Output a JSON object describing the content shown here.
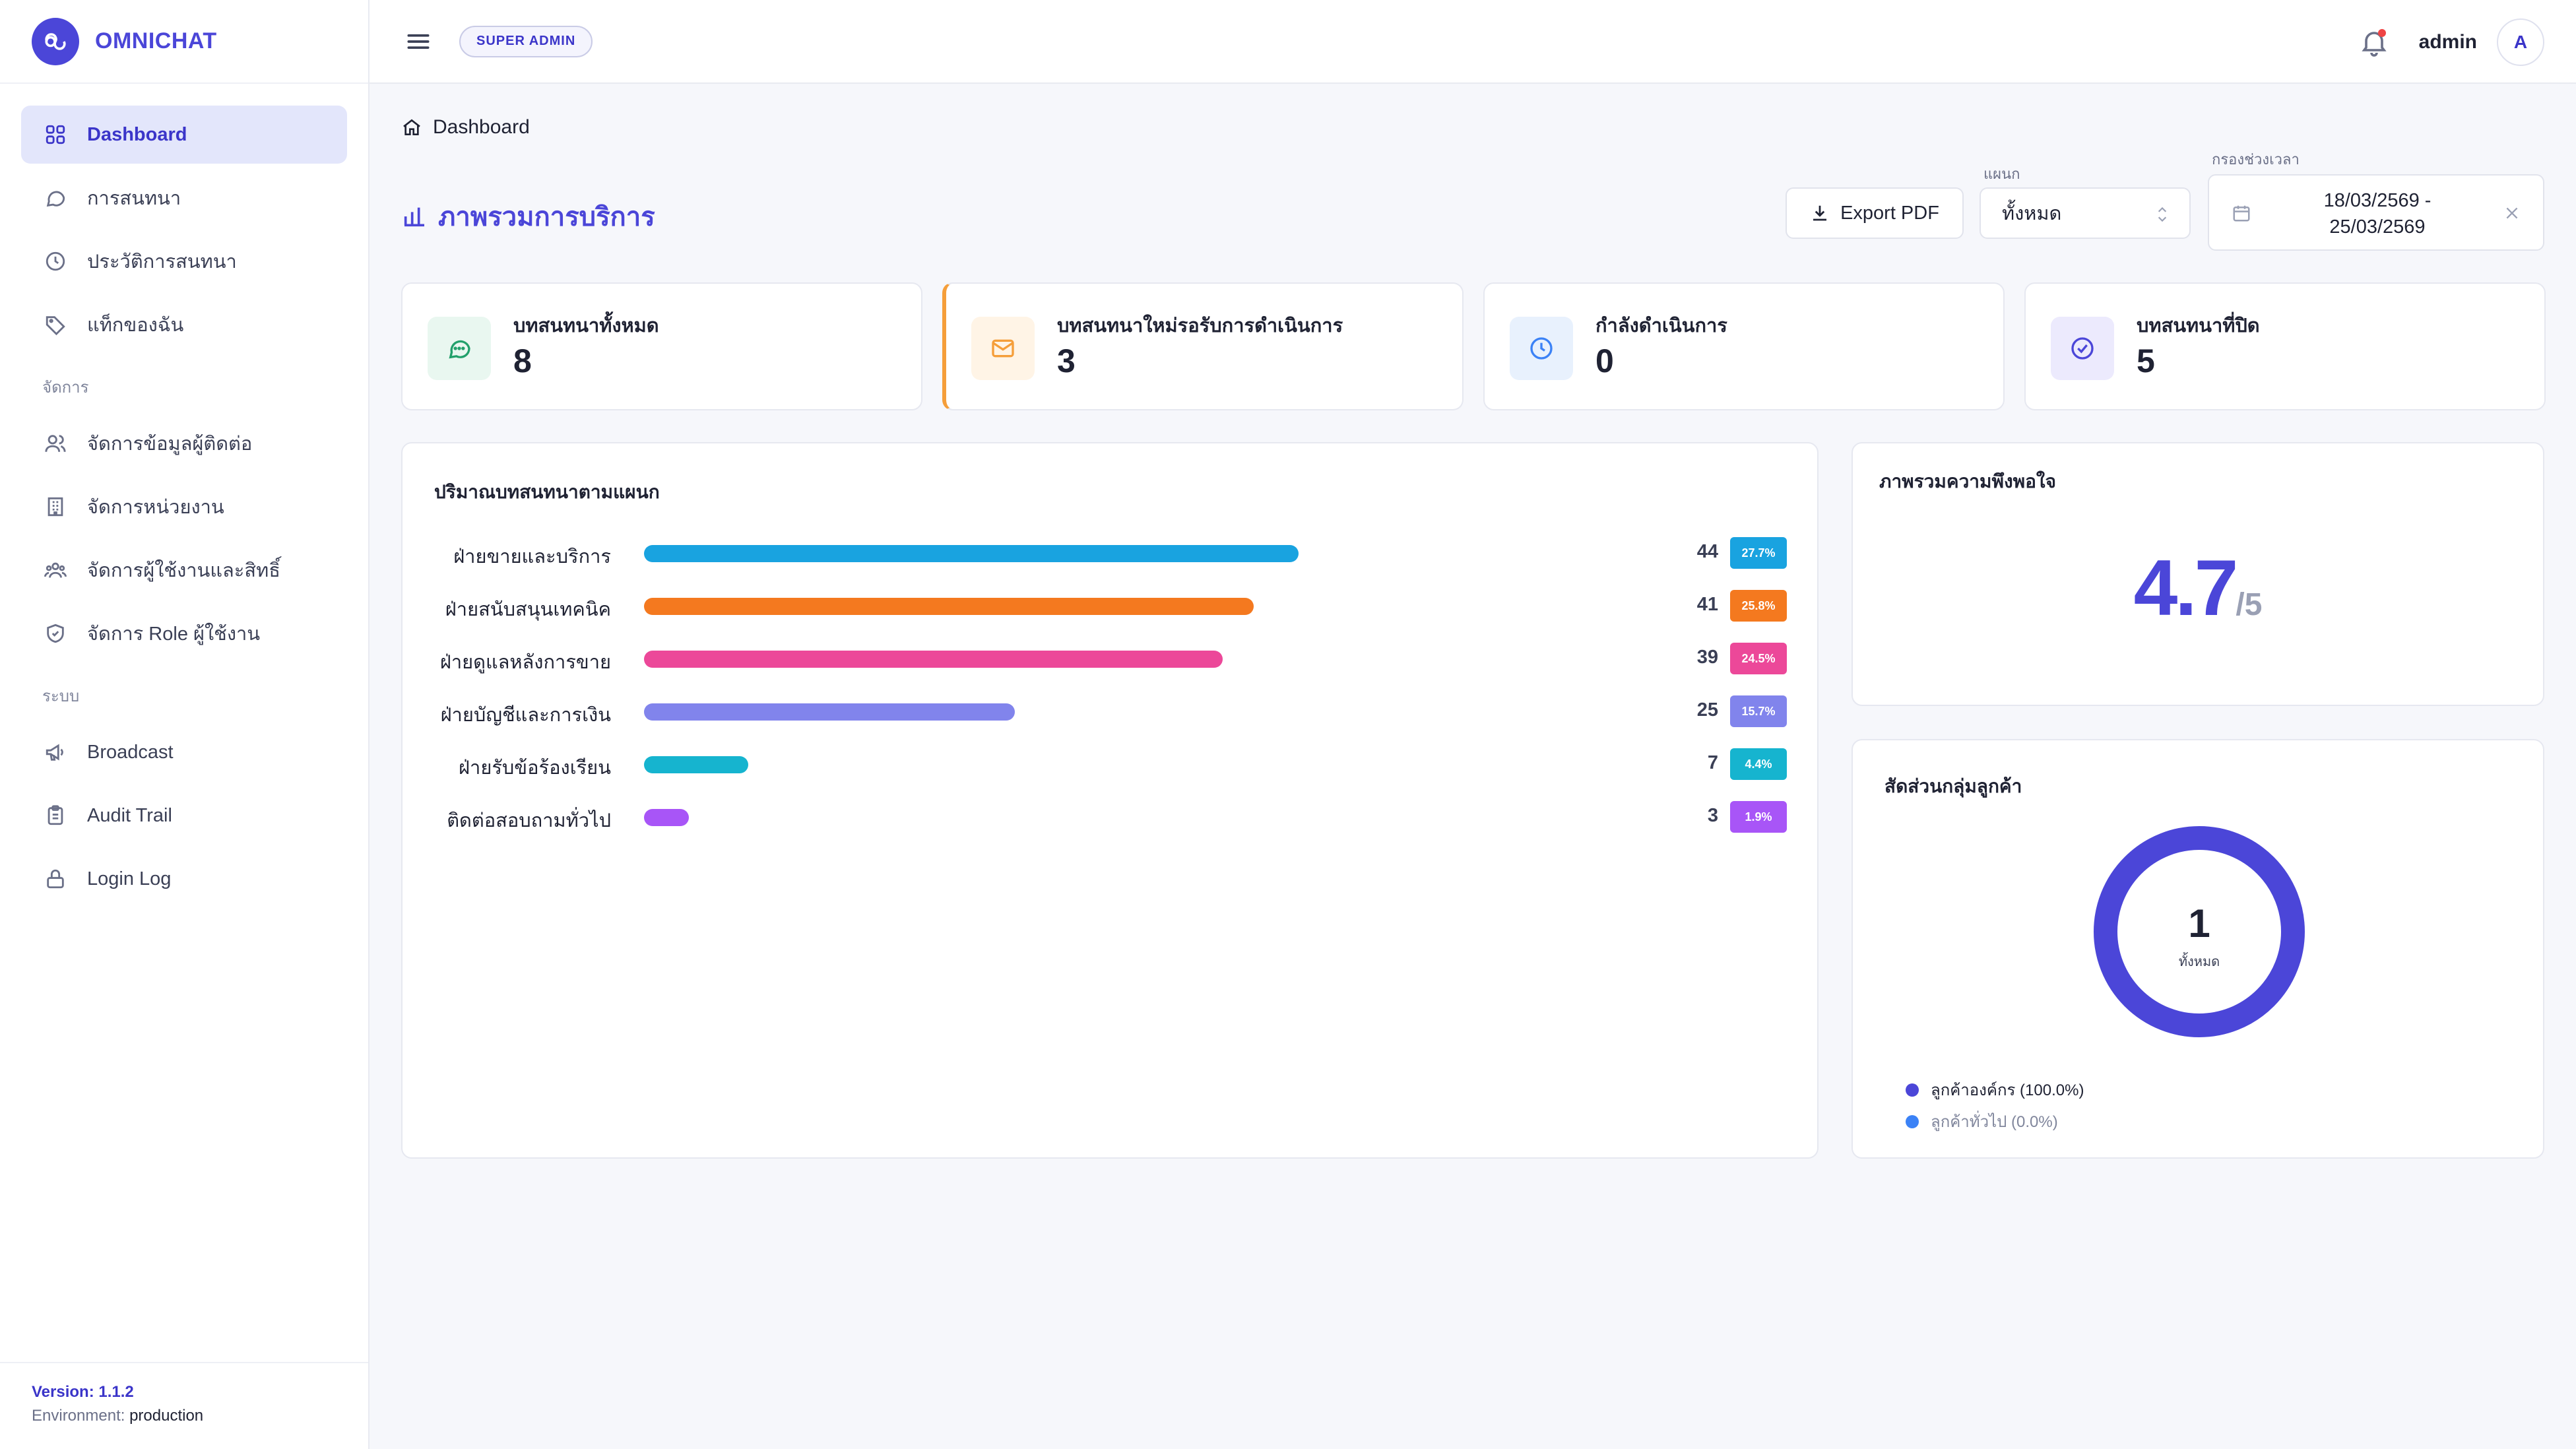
{
  "brand": {
    "name": "OMNICHAT"
  },
  "sidebar": {
    "items": [
      {
        "label": "Dashboard",
        "icon": "grid-icon",
        "active": true
      },
      {
        "label": "การสนทนา",
        "icon": "chat-icon"
      },
      {
        "label": "ประวัติการสนทนา",
        "icon": "clock-icon"
      },
      {
        "label": "แท็กของฉัน",
        "icon": "tag-icon"
      }
    ],
    "section_manage": "จัดการ",
    "manage_items": [
      {
        "label": "จัดการข้อมูลผู้ติดต่อ",
        "icon": "contacts-icon"
      },
      {
        "label": "จัดการหน่วยงาน",
        "icon": "building-icon"
      },
      {
        "label": "จัดการผู้ใช้งานและสิทธิ์",
        "icon": "users-icon"
      },
      {
        "label": "จัดการ Role ผู้ใช้งาน",
        "icon": "shield-icon"
      }
    ],
    "section_system": "ระบบ",
    "system_items": [
      {
        "label": "Broadcast",
        "icon": "megaphone-icon"
      },
      {
        "label": "Audit Trail",
        "icon": "clipboard-icon"
      },
      {
        "label": "Login Log",
        "icon": "lock-icon"
      }
    ],
    "version": "Version: 1.1.2",
    "environment_label": "Environment:",
    "environment": "production"
  },
  "header": {
    "role_badge": "SUPER ADMIN",
    "username": "admin",
    "avatar_initial": "A"
  },
  "breadcrumb": {
    "current": "Dashboard"
  },
  "page": {
    "title": "ภาพรวมการบริการ",
    "export_label": "Export PDF",
    "dept_label": "แผนก",
    "dept_value": "ทั้งหมด",
    "date_label": "กรองช่วงเวลา",
    "date_from": "18/03/2569 -",
    "date_to": "25/03/2569"
  },
  "stats": [
    {
      "label": "บทสนทนาทั้งหมด",
      "value": "8",
      "icon": "chat-icon",
      "color": "#22a06b",
      "bg": "#e9f7f0"
    },
    {
      "label": "บทสนทนาใหม่รอรับการดำเนินการ",
      "value": "3",
      "icon": "mail-icon",
      "color": "#f59e3a",
      "bg": "#fff4e6"
    },
    {
      "label": "กำลังดำเนินการ",
      "value": "0",
      "icon": "clock-icon",
      "color": "#3b82f6",
      "bg": "#e8f1fd"
    },
    {
      "label": "บทสนทนาที่ปิด",
      "value": "5",
      "icon": "check-circle-icon",
      "color": "#4b46d8",
      "bg": "#eceafd"
    }
  ],
  "dept_volume": {
    "title": "ปริมาณบทสนทนาตามแผนก",
    "max": 100,
    "rows": [
      {
        "label": "ฝ่ายขายและบริการ",
        "count": "44",
        "pct": "27.7%",
        "fraction": 0.277,
        "color": "#19a3e0"
      },
      {
        "label": "ฝ่ายสนับสนุนเทคนิค",
        "count": "41",
        "pct": "25.8%",
        "fraction": 0.258,
        "color": "#f4791f"
      },
      {
        "label": "ฝ่ายดูแลหลังการขาย",
        "count": "39",
        "pct": "24.5%",
        "fraction": 0.245,
        "color": "#ec4899"
      },
      {
        "label": "ฝ่ายบัญชีและการเงิน",
        "count": "25",
        "pct": "15.7%",
        "fraction": 0.157,
        "color": "#8184ec"
      },
      {
        "label": "ฝ่ายรับข้อร้องเรียน",
        "count": "7",
        "pct": "4.4%",
        "fraction": 0.044,
        "color": "#16b4cf"
      },
      {
        "label": "ติดต่อสอบถามทั่วไป",
        "count": "3",
        "pct": "1.9%",
        "fraction": 0.019,
        "color": "#a855f7"
      }
    ]
  },
  "satisfaction": {
    "title": "ภาพรวมความพึงพอใจ",
    "score": "4.7",
    "out_of": "/5"
  },
  "customer_groups": {
    "title": "สัดส่วนกลุ่มลูกค้า",
    "total": "1",
    "total_label": "ทั้งหมด",
    "ring_color": "#4b46d8",
    "legend": [
      {
        "label": "ลูกค้าองค์กร (100.0%)",
        "color": "#4b46d8",
        "muted": false
      },
      {
        "label": "ลูกค้าทั่วไป (0.0%)",
        "color": "#3b82f6",
        "muted": true
      }
    ]
  }
}
